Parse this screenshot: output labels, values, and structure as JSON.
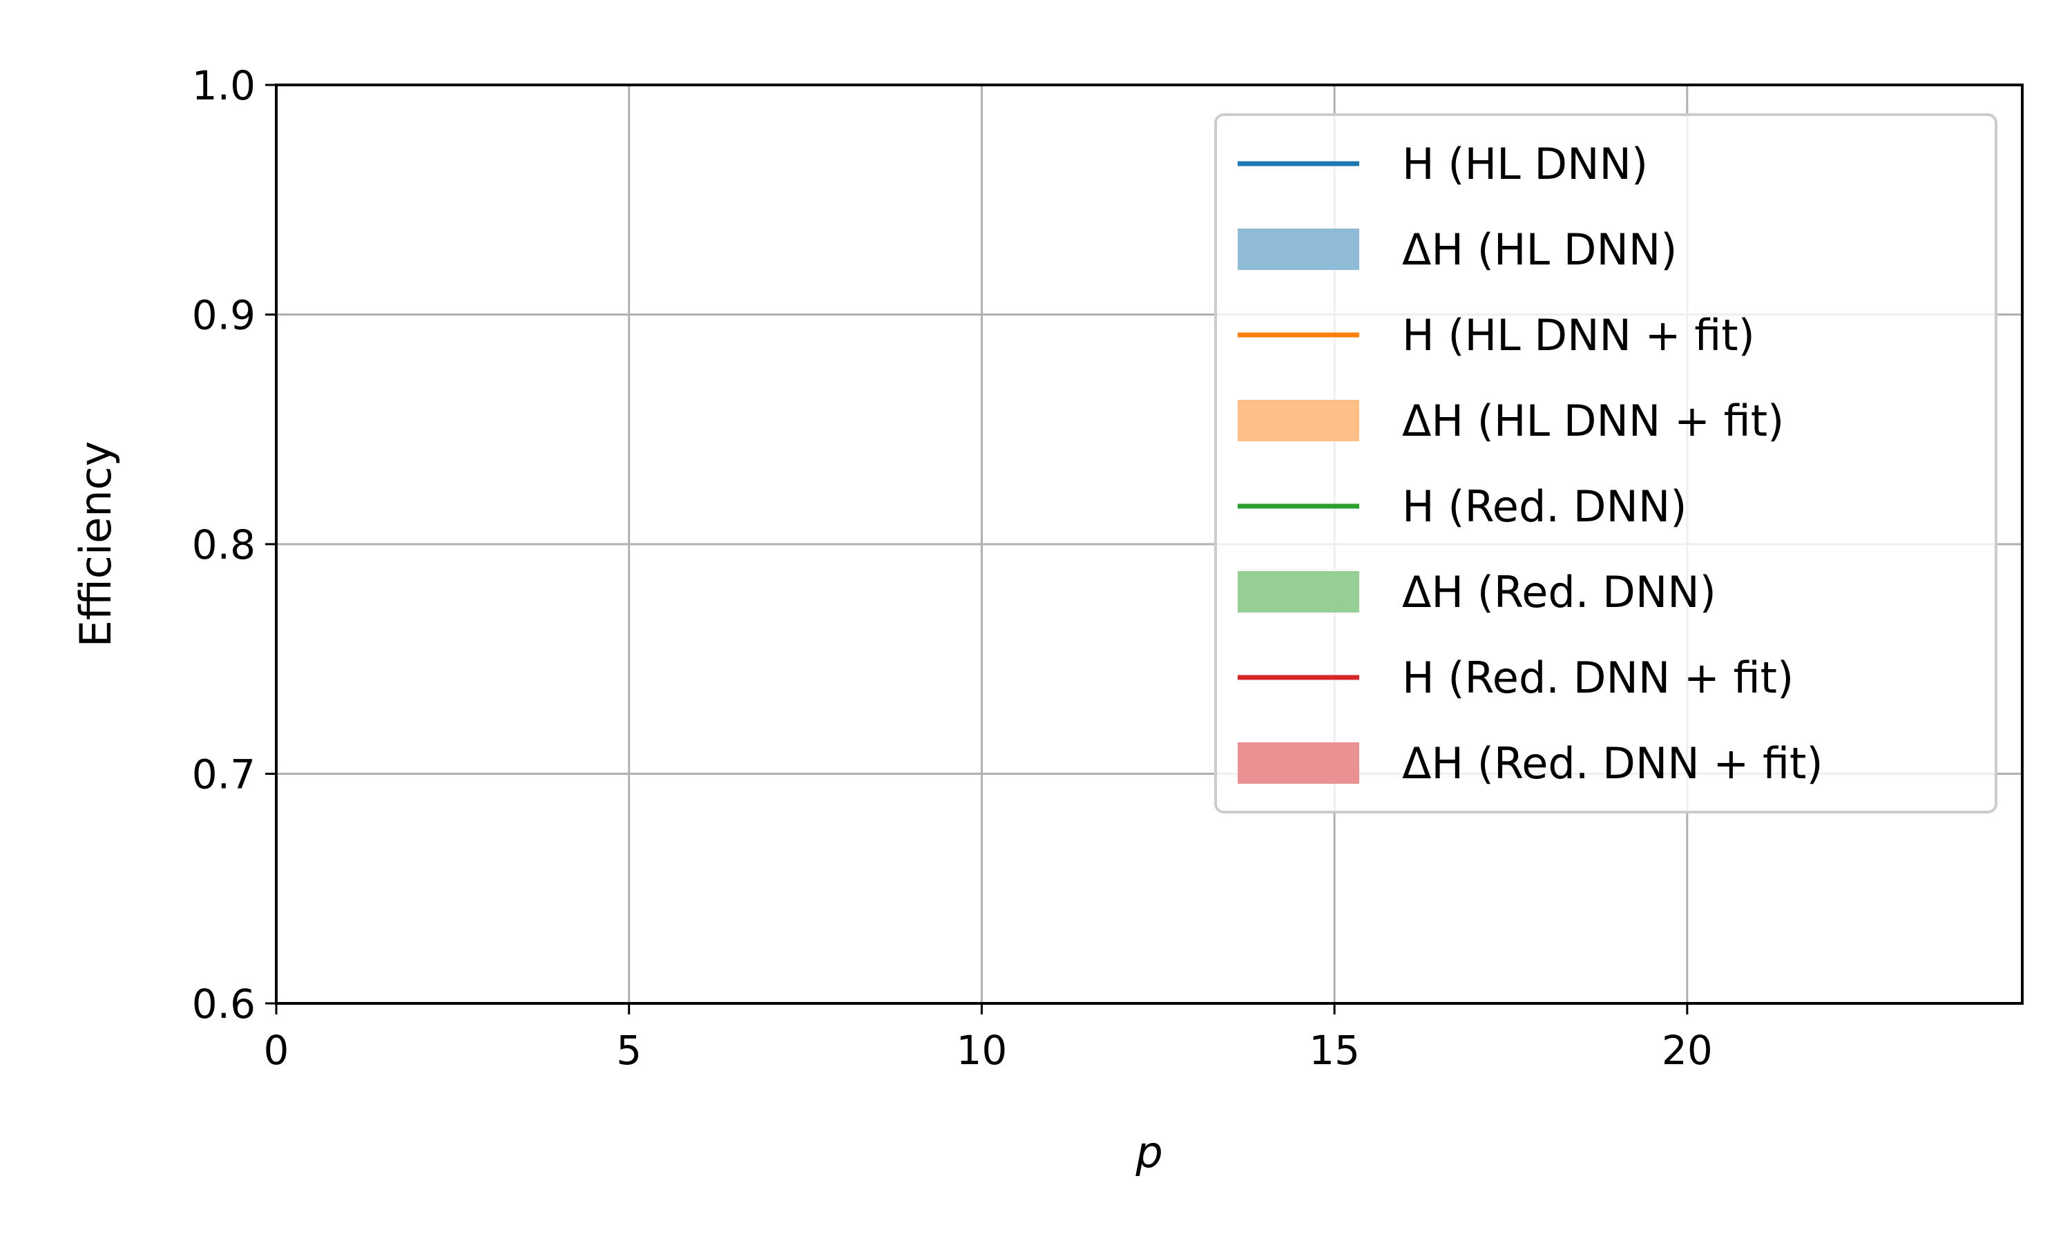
{
  "chart_data": {
    "type": "line",
    "xlabel": "p",
    "ylabel": "Efficiency",
    "xlim": [
      0,
      24.75
    ],
    "ylim": [
      0.6,
      1.0
    ],
    "x_ticks": [
      0,
      5,
      10,
      15,
      20
    ],
    "y_ticks": [
      0.6,
      0.7,
      0.8,
      0.9,
      1.0
    ],
    "x_tick_labels": [
      "0",
      "5",
      "10",
      "15",
      "20"
    ],
    "y_tick_labels": [
      "0.6",
      "0.7",
      "0.8",
      "0.9",
      "1.0"
    ],
    "grid": true,
    "legend_position": "upper-right",
    "series": [],
    "legend": [
      {
        "label": "H (HL DNN)",
        "kind": "line",
        "color": "#1f77b4"
      },
      {
        "label": "ΔH (HL DNN)",
        "kind": "band",
        "color": "#8fbbd9"
      },
      {
        "label": "H (HL DNN + fit)",
        "kind": "line",
        "color": "#ff7f0e"
      },
      {
        "label": "ΔH (HL DNN + fit)",
        "kind": "band",
        "color": "#ffbf86"
      },
      {
        "label": "H (Red. DNN)",
        "kind": "line",
        "color": "#2ca02c"
      },
      {
        "label": "ΔH (Red. DNN)",
        "kind": "band",
        "color": "#95cf95"
      },
      {
        "label": "H (Red. DNN + fit)",
        "kind": "line",
        "color": "#d62728"
      },
      {
        "label": "ΔH (Red. DNN + fit)",
        "kind": "band",
        "color": "#ea9293"
      }
    ]
  }
}
